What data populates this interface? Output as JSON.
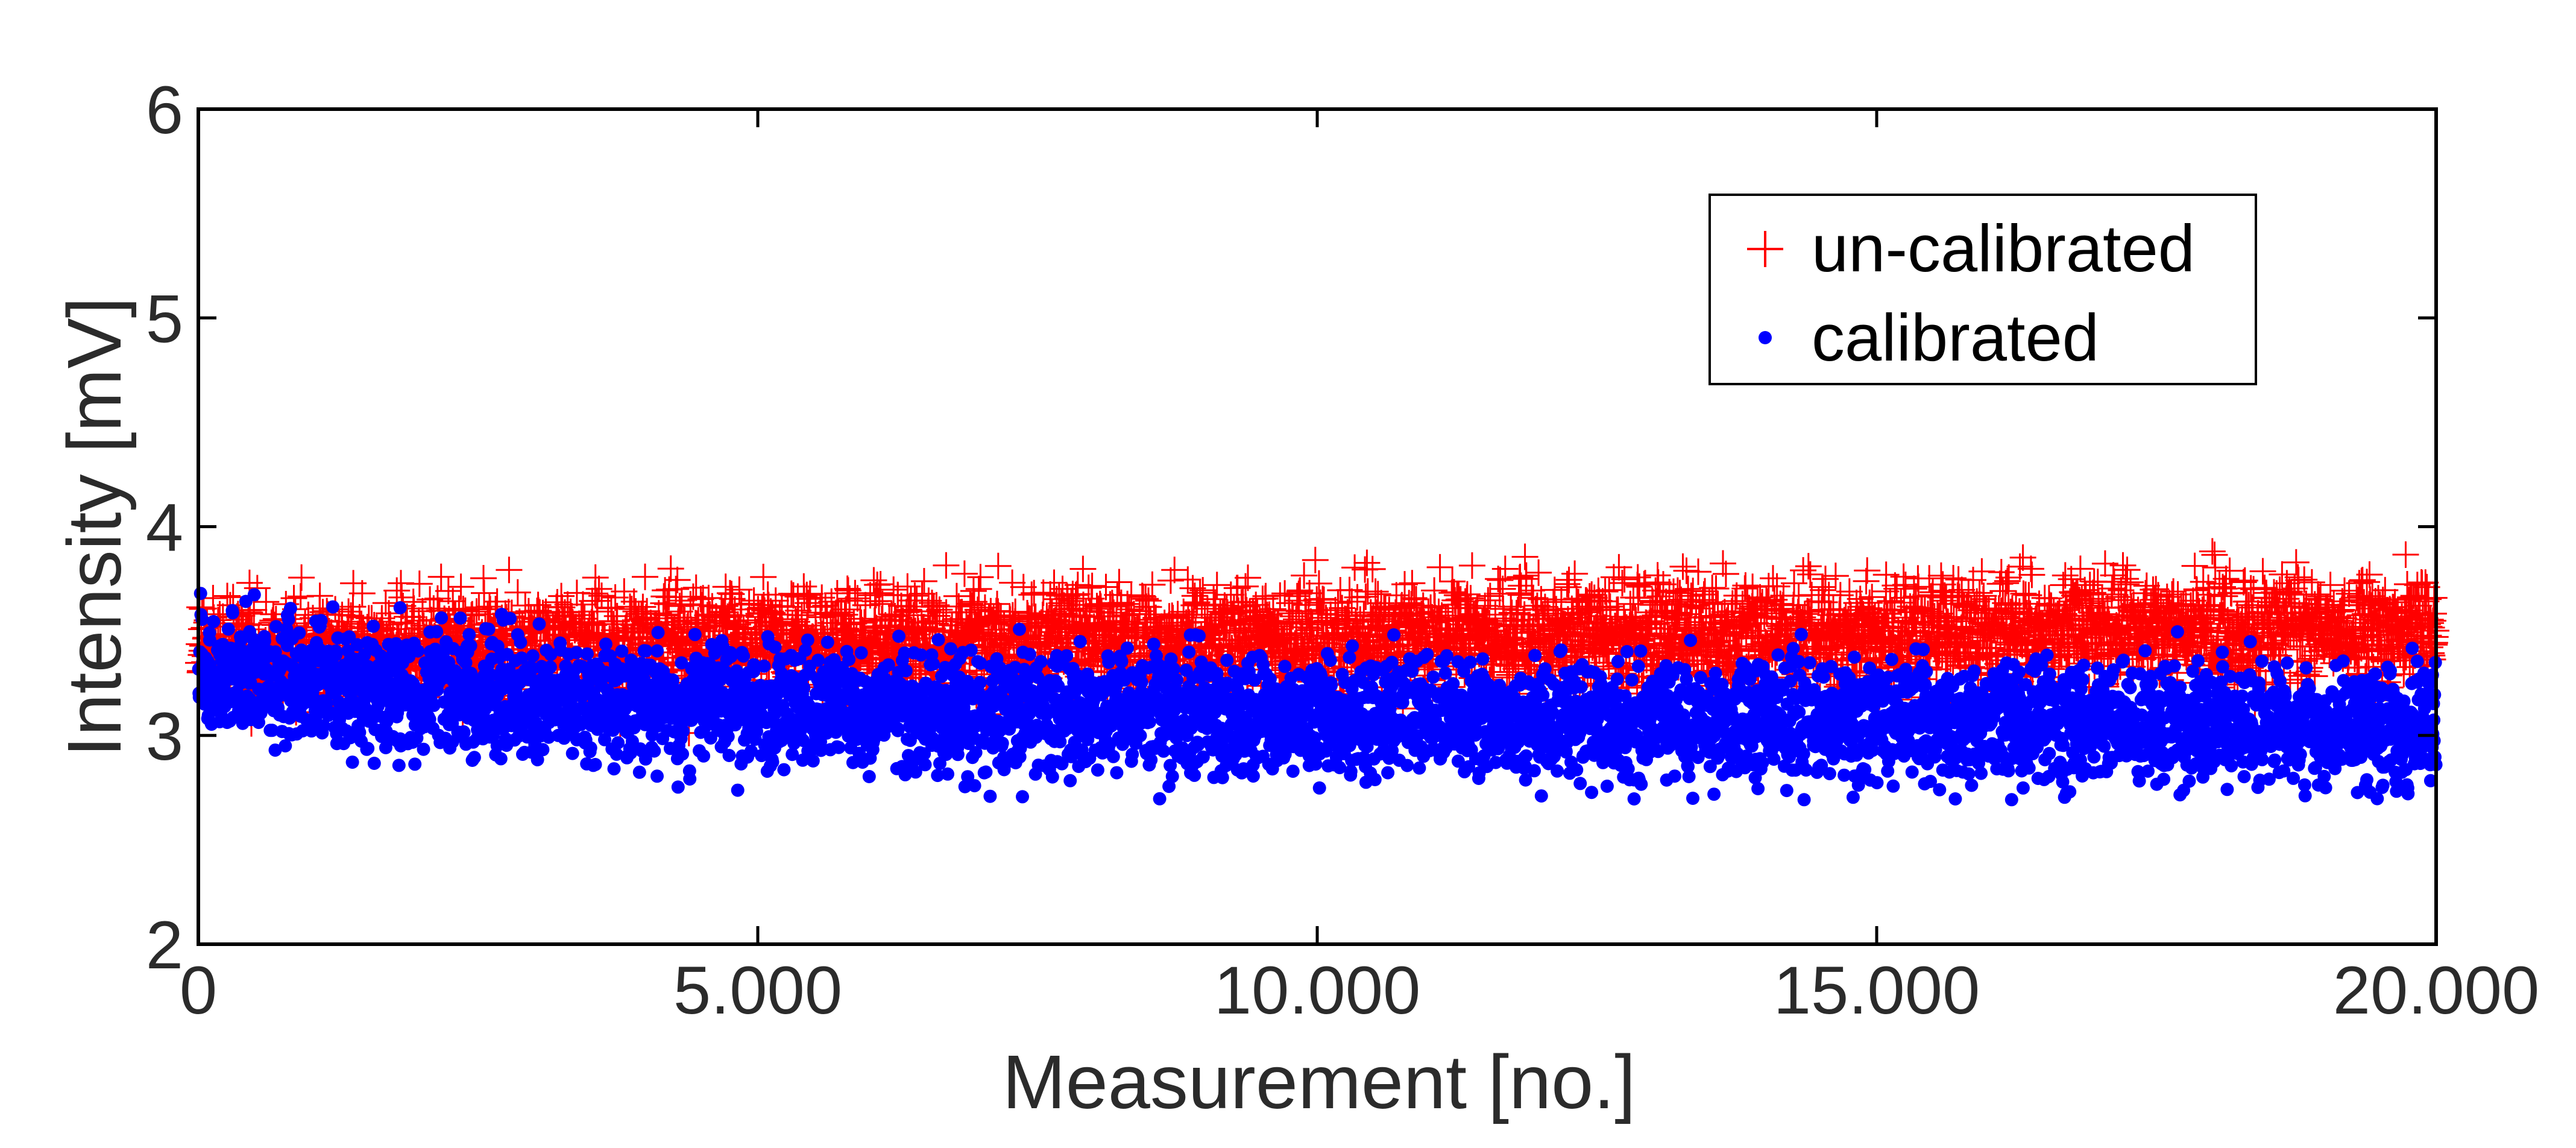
{
  "chart_data": {
    "type": "scatter",
    "title": "",
    "xlabel": "Measurement [no.]",
    "ylabel": "Intensity [mV]",
    "xlim": [
      0,
      20000
    ],
    "ylim": [
      2,
      6
    ],
    "x_ticks": [
      0,
      5000,
      10000,
      15000,
      20000
    ],
    "x_tick_labels": [
      "0",
      "5.000",
      "10.000",
      "15.000",
      "20.000"
    ],
    "y_ticks": [
      2,
      3,
      4,
      5,
      6
    ],
    "y_tick_labels": [
      "2",
      "3",
      "4",
      "5",
      "6"
    ],
    "grid": false,
    "legend_position": "top-right",
    "point_count_per_series": 20000,
    "series": [
      {
        "name": "un-calibrated",
        "marker": "plus",
        "color": "#ff0000",
        "x": [
          0,
          2000,
          4000,
          6000,
          8000,
          10000,
          12000,
          14000,
          16000,
          18000,
          20000
        ],
        "trend_y": [
          3.4,
          3.42,
          3.44,
          3.45,
          3.46,
          3.47,
          3.48,
          3.49,
          3.5,
          3.51,
          3.52
        ],
        "band_min": 3.0,
        "band_max": 3.97
      },
      {
        "name": "calibrated",
        "marker": "dot",
        "color": "#0000ff",
        "x": [
          0,
          2000,
          4000,
          6000,
          8000,
          10000,
          12000,
          14000,
          16000,
          18000,
          20000
        ],
        "trend_y": [
          3.3,
          3.2,
          3.15,
          3.12,
          3.1,
          3.08,
          3.08,
          3.07,
          3.06,
          3.05,
          3.05
        ],
        "band_min": 2.69,
        "band_max": 3.72
      }
    ]
  }
}
